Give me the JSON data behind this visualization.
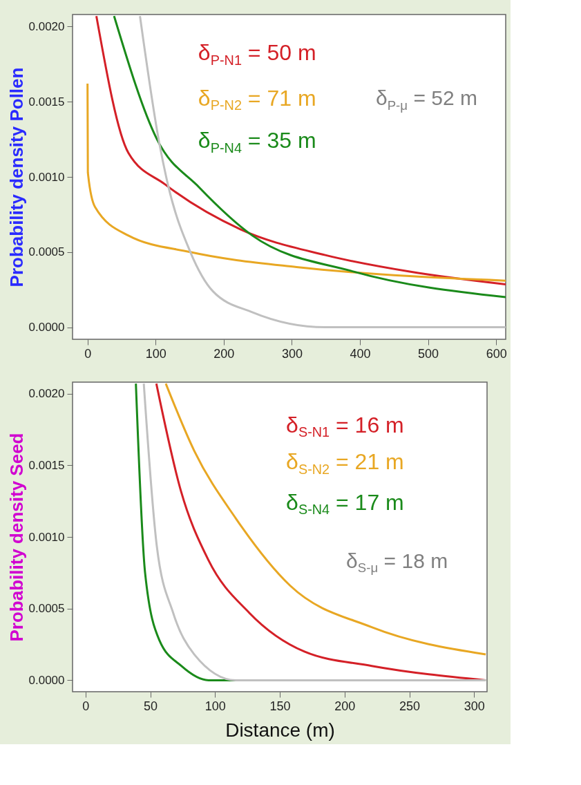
{
  "chart_data": [
    {
      "type": "line",
      "ylabel": "Probability density  Pollen",
      "xlim": [
        -22,
        614
      ],
      "ylim": [
        -8e-05,
        0.00208
      ],
      "xticks": [
        0,
        100,
        200,
        300,
        400,
        500,
        600
      ],
      "yticks": [
        {
          "value": 0,
          "label": "0.0000"
        },
        {
          "value": 0.0005,
          "label": "0.0005"
        },
        {
          "value": 0.001,
          "label": "0.0010"
        },
        {
          "value": 0.0015,
          "label": "0.0015"
        },
        {
          "value": 0.002,
          "label": "0.0020"
        }
      ],
      "series": [
        {
          "color": "#d42027",
          "x": [
            13,
            60,
            114,
            225,
            349,
            473,
            614
          ],
          "values": [
            0.00207,
            0.00116,
            0.00095,
            0.00065,
            0.00048,
            0.00037,
            0.000285
          ]
        },
        {
          "color": "#e8a723",
          "x": [
            0,
            0.5,
            11,
            60,
            151,
            307,
            473,
            614
          ],
          "values": [
            0.00162,
            0.00103,
            0.0008,
            0.00061,
            0.0005,
            0.0004,
            0.00034,
            0.00031
          ]
        },
        {
          "color": "#1a8a1a",
          "x": [
            39,
            102,
            164,
            242,
            391,
            614
          ],
          "values": [
            0.00207,
            0.00125,
            0.00093,
            0.00061,
            0.00037,
            0.0002
          ]
        },
        {
          "color": "#c0c0c0",
          "x": [
            77,
            106,
            118,
            151,
            184,
            242,
            349,
            614
          ],
          "values": [
            0.00207,
            0.00121,
            0.00095,
            0.0005,
            0.00024,
            0.0001,
            0,
            0
          ]
        }
      ],
      "annotations": [
        "δ$_{P-N1}$ = 50 m",
        "δ$_{P-N2}$ = 71 m",
        "δ$_{P-N4}$ = 35 m",
        "δ$_{P-μ}$ = 52 m"
      ]
    },
    {
      "type": "line",
      "ylabel": "Probability density Seed",
      "xlabel": "Distance (m)",
      "xlim": [
        -10,
        310
      ],
      "ylim": [
        -8e-05,
        0.00208
      ],
      "xticks": [
        0,
        50,
        100,
        150,
        200,
        250,
        300
      ],
      "yticks": [
        {
          "value": 0,
          "label": "0.0000"
        },
        {
          "value": 0.0005,
          "label": "0.0005"
        },
        {
          "value": 0.001,
          "label": "0.0010"
        },
        {
          "value": 0.0015,
          "label": "0.0015"
        },
        {
          "value": 0.002,
          "label": "0.0020"
        }
      ],
      "series": [
        {
          "color": "#d42027",
          "x": [
            54.7,
            73.7,
            94.8,
            126.5,
            169,
            221,
            309
          ],
          "values": [
            0.00207,
            0.00132,
            0.00084,
            0.00047,
            0.0002,
            0.0001,
            0
          ]
        },
        {
          "color": "#e8a723",
          "x": [
            62,
            84,
            116,
            158,
            221,
            309
          ],
          "values": [
            0.00207,
            0.0016,
            0.00113,
            0.00066,
            0.00037,
            0.00018
          ]
        },
        {
          "color": "#1a8a1a",
          "x": [
            38.9,
            46,
            57,
            74,
            95,
            309
          ],
          "values": [
            0.00207,
            0.00075,
            0.00028,
            0.0001,
            0,
            0
          ]
        },
        {
          "color": "#c0c0c0",
          "x": [
            45,
            55,
            67.7,
            84,
            116,
            148,
            309
          ],
          "values": [
            0.00207,
            0.00094,
            0.00047,
            0.00018,
            0,
            0,
            0
          ]
        }
      ],
      "annotations": [
        "δ$_{S-N1}$ = 16 m",
        "δ$_{S-N2}$ = 21 m",
        "δ$_{S-N4}$ = 17 m",
        "δ$_{S-μ}$ = 18 m"
      ]
    }
  ]
}
